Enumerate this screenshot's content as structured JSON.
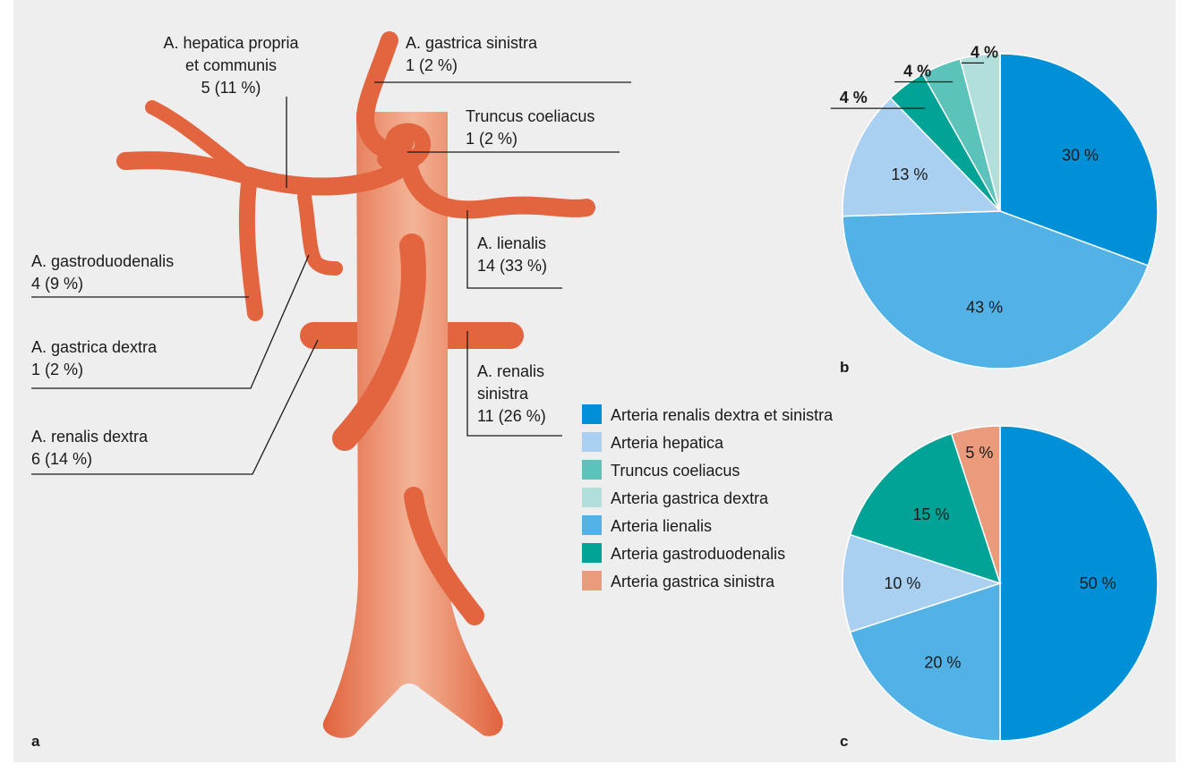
{
  "diagram": {
    "panel": "a",
    "labels": [
      [
        "A. hepatica propria",
        "et communis",
        "5 (11 %)"
      ],
      [
        "A. gastrica sinistra",
        "1 (2 %)"
      ],
      [
        "Truncus coeliacus",
        "1 (2 %)"
      ],
      [
        "A. gastroduodenalis",
        "4 (9 %)"
      ],
      [
        "A. lienalis",
        "14 (33 %)"
      ],
      [
        "A. gastrica dextra",
        "1 (2 %)"
      ],
      [
        "A. renalis",
        "sinistra",
        "11 (26 %)"
      ],
      [
        "A. renalis dextra",
        "6 (14 %)"
      ]
    ]
  },
  "legend": [
    {
      "name": "Arteria renalis dextra et sinistra",
      "color": "#0090d8"
    },
    {
      "name": "Arteria hepatica",
      "color": "#a9d0f0"
    },
    {
      "name": "Truncus coeliacus",
      "color": "#5cc3bb"
    },
    {
      "name": "Arteria gastrica dextra",
      "color": "#b1dfdc"
    },
    {
      "name": "Arteria lienalis",
      "color": "#52b2e6"
    },
    {
      "name": "Arteria gastroduodenalis",
      "color": "#00a395"
    },
    {
      "name": "Arteria gastrica sinistra",
      "color": "#e99b7c"
    }
  ],
  "chart_data": [
    {
      "type": "pie",
      "panel": "b",
      "categories": [
        "Arteria renalis dextra et sinistra",
        "Arteria lienalis",
        "Arteria hepatica",
        "Arteria gastroduodenalis",
        "Truncus coeliacus",
        "Arteria gastrica dextra"
      ],
      "values": [
        30,
        43,
        13,
        4,
        4,
        4
      ],
      "value_labels": [
        "30 %",
        "43 %",
        "13 %",
        "4 %",
        "4 %",
        "4 %"
      ],
      "colors": [
        "#0090d8",
        "#52b2e6",
        "#a9d0f0",
        "#00a395",
        "#5cc3bb",
        "#b1dfdc"
      ]
    },
    {
      "type": "pie",
      "panel": "c",
      "categories": [
        "Arteria renalis dextra et sinistra",
        "Arteria lienalis",
        "Arteria hepatica",
        "Arteria gastroduodenalis",
        "Arteria gastrica sinistra"
      ],
      "values": [
        50,
        20,
        10,
        15,
        5
      ],
      "value_labels": [
        "50 %",
        "20 %",
        "10 %",
        "15 %",
        "5 %"
      ],
      "colors": [
        "#0090d8",
        "#52b2e6",
        "#a9d0f0",
        "#00a395",
        "#e99b7c"
      ]
    }
  ]
}
